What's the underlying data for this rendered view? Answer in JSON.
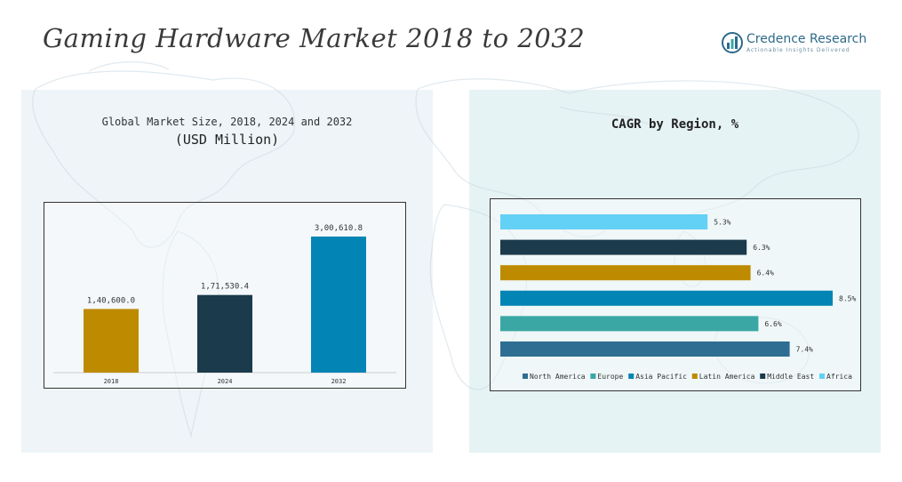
{
  "header": {
    "title": "Gaming Hardware Market 2018 to 2032",
    "logo_name": "Credence Research",
    "logo_tagline": "Actionable Insights Delivered"
  },
  "left_panel": {
    "subtitle_line1": "Global Market Size, 2018, 2024 and 2032",
    "subtitle_line2": "(USD Million)"
  },
  "right_panel": {
    "subtitle": "CAGR by Region, %"
  },
  "chart_data": [
    {
      "type": "bar",
      "categories": [
        "2018",
        "2024",
        "2032"
      ],
      "values": [
        140600.0,
        171530.4,
        300610.8
      ],
      "value_labels": [
        "1,40,600.0",
        "1,71,530.4",
        "3,00,610.8"
      ],
      "colors": [
        "#be8b00",
        "#1b3a4b",
        "#0284b5"
      ],
      "title": "Global Market Size, 2018, 2024 and 2032",
      "ylabel": "(USD Million)",
      "ylim": [
        0,
        300610.8
      ],
      "grid": false
    },
    {
      "type": "bar",
      "orientation": "horizontal",
      "categories": [
        "Africa",
        "Middle East",
        "Latin America",
        "Asia Pacific",
        "Europe",
        "North America"
      ],
      "values": [
        5.3,
        6.3,
        6.4,
        8.5,
        6.6,
        7.4
      ],
      "value_labels": [
        "5.3%",
        "6.3%",
        "6.4%",
        "8.5%",
        "6.6%",
        "7.4%"
      ],
      "colors": [
        "#63d0f5",
        "#1b3a4b",
        "#be8b00",
        "#0284b5",
        "#3aa7a4",
        "#2f6e93"
      ],
      "title": "CAGR by Region, %",
      "legend": [
        {
          "name": "North America",
          "color": "#2f6e93"
        },
        {
          "name": "Europe",
          "color": "#3aa7a4"
        },
        {
          "name": "Asia Pacific",
          "color": "#0284b5"
        },
        {
          "name": "Latin America",
          "color": "#be8b00"
        },
        {
          "name": "Middle East",
          "color": "#1b3a4b"
        },
        {
          "name": "Africa",
          "color": "#63d0f5"
        }
      ],
      "legend_position": "bottom",
      "xlim": [
        0,
        8.5
      ],
      "grid": false
    }
  ]
}
